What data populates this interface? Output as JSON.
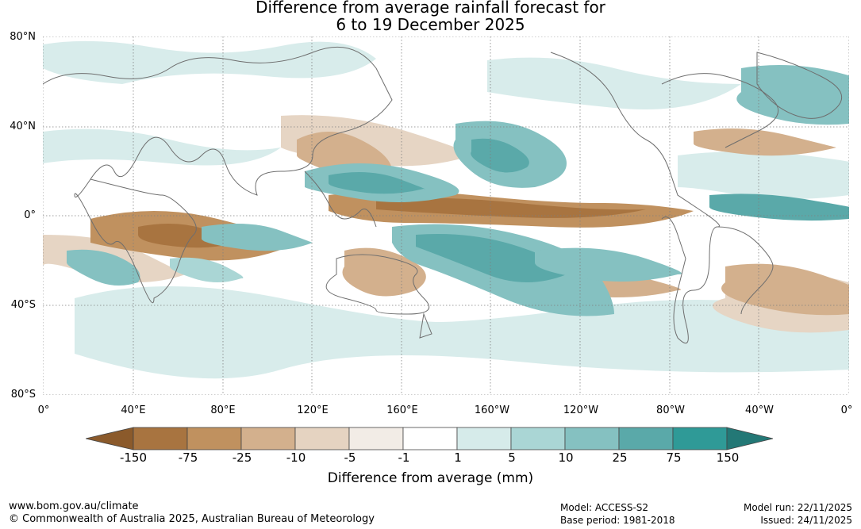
{
  "title_line1": "Difference from average rainfall forecast for",
  "title_line2": "6 to 19 December 2025",
  "lat_labels": [
    "80°N",
    "40°N",
    "0°",
    "40°S",
    "80°S"
  ],
  "lon_labels": [
    "0°",
    "40°E",
    "80°E",
    "120°E",
    "160°E",
    "160°W",
    "120°W",
    "80°W",
    "40°W",
    "0°"
  ],
  "colorbar": {
    "ticks": [
      "-150",
      "-75",
      "-25",
      "-10",
      "-5",
      "-1",
      "1",
      "5",
      "10",
      "25",
      "75",
      "150"
    ],
    "colors": [
      "#8b5a2b",
      "#a87440",
      "#c0915f",
      "#d3b08d",
      "#e5d3c1",
      "#f2ece6",
      "#ffffff",
      "#d6ebea",
      "#aad6d5",
      "#85c1c1",
      "#5aa9a9",
      "#2f9a97",
      "#237876"
    ],
    "label": "Difference from average (mm)"
  },
  "footer": {
    "url": "www.bom.gov.au/climate",
    "copyright": "© Commonwealth of Australia 2025, Australian Bureau of Meteorology",
    "model": "Model: ACCESS-S2",
    "base_period": "Base period: 1981-2018",
    "model_run": "Model run: 22/11/2025",
    "issued": "Issued: 24/11/2025"
  }
}
